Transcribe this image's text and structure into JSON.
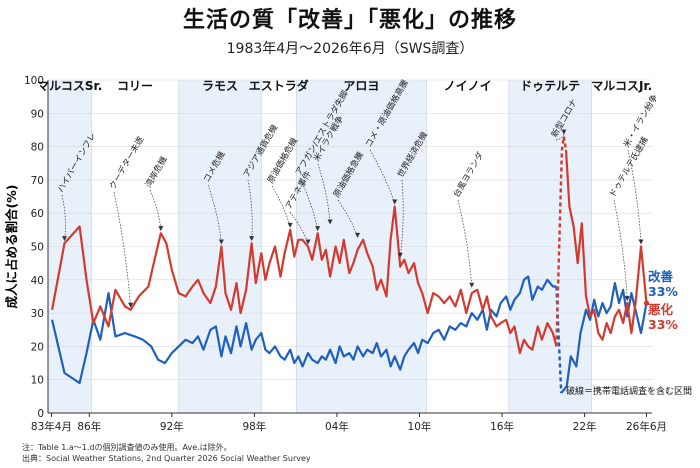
{
  "title": "生活の質「改善」「悪化」の推移",
  "subtitle": "1983年4月～2026年6月（SWS調査）",
  "footnote": {
    "line1": "注：Table 1.a～1.dの個別調査値のみ使用。Ave.は除外。",
    "line2": "出典：Social Weather Stations, 2nd Quarter 2026 Social Weather Survey"
  },
  "colors": {
    "improve": "#1f5fbf",
    "worsen": "#d23a2f",
    "band": "#e8f0fa",
    "grid": "#d9d9d9"
  },
  "chart_data": {
    "type": "line",
    "ylabel": "成人に占める割合(%)",
    "ylim": [
      0,
      100
    ],
    "xlim": [
      1983.0,
      2026.9
    ],
    "yticks": [
      0,
      10,
      20,
      30,
      40,
      50,
      60,
      70,
      80,
      90,
      100
    ],
    "xticks": [
      {
        "x": 1983.25,
        "label": "83年4月"
      },
      {
        "x": 1986,
        "label": "86年"
      },
      {
        "x": 1992,
        "label": "92年"
      },
      {
        "x": 1998,
        "label": "98年"
      },
      {
        "x": 2004,
        "label": "04年"
      },
      {
        "x": 2010,
        "label": "10年"
      },
      {
        "x": 2016,
        "label": "16年"
      },
      {
        "x": 2022,
        "label": "22年"
      },
      {
        "x": 2026.5,
        "label": "26年6月"
      }
    ],
    "eras": [
      {
        "label": "マルコスSr.",
        "start": 1983.0,
        "end": 1986.15,
        "shaded": true
      },
      {
        "label": "コリー",
        "start": 1986.15,
        "end": 1992.5,
        "shaded": false
      },
      {
        "label": "ラモス",
        "start": 1992.5,
        "end": 1998.5,
        "shaded": true
      },
      {
        "label": "エストラダ",
        "start": 1998.5,
        "end": 2001.05,
        "shaded": false
      },
      {
        "label": "アロヨ",
        "start": 2001.05,
        "end": 2010.5,
        "shaded": true
      },
      {
        "label": "ノイノイ",
        "start": 2010.5,
        "end": 2016.5,
        "shaded": false
      },
      {
        "label": "ドゥテルテ",
        "start": 2016.5,
        "end": 2022.5,
        "shaded": true
      },
      {
        "label": "マルコスJr.",
        "start": 2022.5,
        "end": 2026.9,
        "shaded": false
      }
    ],
    "series": [
      {
        "name": "改善",
        "end_label": "改善",
        "end_value_label": "33%",
        "points": [
          [
            1983.3,
            28
          ],
          [
            1984.2,
            12
          ],
          [
            1985.3,
            9
          ],
          [
            1985.8,
            18
          ],
          [
            1986.3,
            28
          ],
          [
            1986.8,
            22
          ],
          [
            1987.4,
            36
          ],
          [
            1987.9,
            23
          ],
          [
            1988.6,
            24
          ],
          [
            1989.3,
            23
          ],
          [
            1989.9,
            22
          ],
          [
            1990.5,
            20
          ],
          [
            1991.0,
            16
          ],
          [
            1991.5,
            15
          ],
          [
            1992.0,
            18
          ],
          [
            1992.5,
            20
          ],
          [
            1993.0,
            22
          ],
          [
            1993.5,
            21
          ],
          [
            1993.9,
            23
          ],
          [
            1994.3,
            19
          ],
          [
            1994.8,
            25
          ],
          [
            1995.2,
            26
          ],
          [
            1995.6,
            17
          ],
          [
            1995.9,
            23
          ],
          [
            1996.3,
            18
          ],
          [
            1996.7,
            26
          ],
          [
            1997.0,
            20
          ],
          [
            1997.4,
            27
          ],
          [
            1997.8,
            19
          ],
          [
            1998.1,
            22
          ],
          [
            1998.5,
            24
          ],
          [
            1998.8,
            19
          ],
          [
            1999.1,
            18
          ],
          [
            1999.5,
            20
          ],
          [
            1999.9,
            17
          ],
          [
            2000.2,
            16
          ],
          [
            2000.6,
            19
          ],
          [
            2000.9,
            15
          ],
          [
            2001.2,
            17
          ],
          [
            2001.5,
            14
          ],
          [
            2001.9,
            18
          ],
          [
            2002.2,
            16
          ],
          [
            2002.6,
            15
          ],
          [
            2002.9,
            17
          ],
          [
            2003.2,
            16
          ],
          [
            2003.5,
            19
          ],
          [
            2003.9,
            15
          ],
          [
            2004.2,
            20
          ],
          [
            2004.5,
            17
          ],
          [
            2004.9,
            18
          ],
          [
            2005.2,
            16
          ],
          [
            2005.5,
            20
          ],
          [
            2005.9,
            17
          ],
          [
            2006.2,
            19
          ],
          [
            2006.6,
            18
          ],
          [
            2006.9,
            21
          ],
          [
            2007.2,
            17
          ],
          [
            2007.6,
            19
          ],
          [
            2007.9,
            14
          ],
          [
            2008.2,
            17
          ],
          [
            2008.6,
            13
          ],
          [
            2008.9,
            17
          ],
          [
            2009.2,
            19
          ],
          [
            2009.6,
            21
          ],
          [
            2009.9,
            18
          ],
          [
            2010.2,
            22
          ],
          [
            2010.6,
            21
          ],
          [
            2011.0,
            24
          ],
          [
            2011.4,
            25
          ],
          [
            2011.8,
            22
          ],
          [
            2012.2,
            26
          ],
          [
            2012.6,
            25
          ],
          [
            2013.0,
            27
          ],
          [
            2013.4,
            26
          ],
          [
            2013.8,
            30
          ],
          [
            2014.2,
            28
          ],
          [
            2014.6,
            31
          ],
          [
            2014.9,
            25
          ],
          [
            2015.2,
            31
          ],
          [
            2015.6,
            29
          ],
          [
            2015.9,
            33
          ],
          [
            2016.3,
            35
          ],
          [
            2016.6,
            31
          ],
          [
            2016.9,
            34
          ],
          [
            2017.3,
            36
          ],
          [
            2017.6,
            40
          ],
          [
            2017.9,
            41
          ],
          [
            2018.2,
            34
          ],
          [
            2018.6,
            38
          ],
          [
            2018.9,
            37
          ],
          [
            2019.3,
            40
          ],
          [
            2019.7,
            38
          ],
          [
            2019.95,
            38
          ]
        ],
        "gap_points": [
          [
            2019.95,
            38
          ],
          [
            2020.3,
            6
          ]
        ],
        "points_after": [
          [
            2020.3,
            6
          ],
          [
            2020.7,
            8
          ],
          [
            2021.0,
            17
          ],
          [
            2021.4,
            14
          ],
          [
            2021.7,
            24
          ],
          [
            2022.1,
            31
          ],
          [
            2022.4,
            28
          ],
          [
            2022.7,
            34
          ],
          [
            2023.0,
            29
          ],
          [
            2023.3,
            33
          ],
          [
            2023.6,
            30
          ],
          [
            2023.9,
            32
          ],
          [
            2024.2,
            39
          ],
          [
            2024.5,
            33
          ],
          [
            2024.8,
            37
          ],
          [
            2025.1,
            29
          ],
          [
            2025.4,
            36
          ],
          [
            2025.7,
            31
          ],
          [
            2026.1,
            24
          ],
          [
            2026.5,
            33
          ]
        ]
      },
      {
        "name": "悪化",
        "end_label": "悪化",
        "end_value_label": "33%",
        "points": [
          [
            1983.3,
            31
          ],
          [
            1984.2,
            51
          ],
          [
            1985.3,
            56
          ],
          [
            1985.8,
            40
          ],
          [
            1986.3,
            27
          ],
          [
            1986.8,
            32
          ],
          [
            1987.4,
            26
          ],
          [
            1987.9,
            37
          ],
          [
            1988.6,
            32
          ],
          [
            1989.0,
            31
          ],
          [
            1989.6,
            35
          ],
          [
            1990.3,
            38
          ],
          [
            1990.8,
            47
          ],
          [
            1991.2,
            54
          ],
          [
            1991.6,
            51
          ],
          [
            1992.0,
            43
          ],
          [
            1992.5,
            36
          ],
          [
            1993.0,
            35
          ],
          [
            1993.5,
            38
          ],
          [
            1993.9,
            40
          ],
          [
            1994.3,
            36
          ],
          [
            1994.8,
            33
          ],
          [
            1995.2,
            38
          ],
          [
            1995.6,
            50
          ],
          [
            1995.9,
            36
          ],
          [
            1996.3,
            31
          ],
          [
            1996.7,
            39
          ],
          [
            1997.0,
            30
          ],
          [
            1997.4,
            37
          ],
          [
            1997.8,
            51
          ],
          [
            1998.1,
            39
          ],
          [
            1998.5,
            48
          ],
          [
            1998.8,
            40
          ],
          [
            1999.1,
            45
          ],
          [
            1999.5,
            50
          ],
          [
            1999.9,
            41
          ],
          [
            2000.2,
            48
          ],
          [
            2000.6,
            55
          ],
          [
            2000.9,
            47
          ],
          [
            2001.2,
            52
          ],
          [
            2001.5,
            52
          ],
          [
            2001.9,
            50
          ],
          [
            2002.2,
            46
          ],
          [
            2002.6,
            54
          ],
          [
            2002.9,
            46
          ],
          [
            2003.2,
            49
          ],
          [
            2003.5,
            41
          ],
          [
            2003.9,
            50
          ],
          [
            2004.2,
            45
          ],
          [
            2004.5,
            52
          ],
          [
            2004.9,
            42
          ],
          [
            2005.2,
            45
          ],
          [
            2005.5,
            49
          ],
          [
            2005.9,
            52
          ],
          [
            2006.2,
            48
          ],
          [
            2006.6,
            44
          ],
          [
            2006.9,
            37
          ],
          [
            2007.2,
            40
          ],
          [
            2007.6,
            35
          ],
          [
            2007.9,
            52
          ],
          [
            2008.2,
            62
          ],
          [
            2008.6,
            44
          ],
          [
            2008.9,
            46
          ],
          [
            2009.2,
            42
          ],
          [
            2009.6,
            45
          ],
          [
            2009.9,
            39
          ],
          [
            2010.2,
            36
          ],
          [
            2010.6,
            30
          ],
          [
            2011.0,
            36
          ],
          [
            2011.4,
            35
          ],
          [
            2011.8,
            33
          ],
          [
            2012.2,
            35
          ],
          [
            2012.6,
            32
          ],
          [
            2013.0,
            37
          ],
          [
            2013.4,
            30
          ],
          [
            2013.8,
            36
          ],
          [
            2014.2,
            37
          ],
          [
            2014.6,
            31
          ],
          [
            2014.9,
            35
          ],
          [
            2015.2,
            29
          ],
          [
            2015.6,
            26
          ],
          [
            2015.9,
            27
          ],
          [
            2016.3,
            28
          ],
          [
            2016.6,
            24
          ],
          [
            2016.9,
            26
          ],
          [
            2017.3,
            18
          ],
          [
            2017.6,
            22
          ],
          [
            2017.9,
            20
          ],
          [
            2018.2,
            19
          ],
          [
            2018.6,
            26
          ],
          [
            2018.9,
            22
          ],
          [
            2019.3,
            27
          ],
          [
            2019.7,
            24
          ],
          [
            2019.95,
            20
          ]
        ],
        "gap_points": [
          [
            2019.95,
            20
          ],
          [
            2020.35,
            79
          ],
          [
            2020.5,
            83
          ],
          [
            2020.65,
            79
          ]
        ],
        "points_after": [
          [
            2020.65,
            79
          ],
          [
            2020.9,
            62
          ],
          [
            2021.2,
            56
          ],
          [
            2021.5,
            45
          ],
          [
            2021.8,
            57
          ],
          [
            2022.1,
            35
          ],
          [
            2022.4,
            29
          ],
          [
            2022.7,
            31
          ],
          [
            2023.0,
            24
          ],
          [
            2023.3,
            22
          ],
          [
            2023.6,
            27
          ],
          [
            2023.9,
            24
          ],
          [
            2024.2,
            29
          ],
          [
            2024.5,
            31
          ],
          [
            2024.8,
            27
          ],
          [
            2025.1,
            33
          ],
          [
            2025.4,
            24
          ],
          [
            2025.7,
            33
          ],
          [
            2026.1,
            50
          ],
          [
            2026.5,
            33
          ]
        ]
      }
    ],
    "annotations": [
      {
        "label": "ハイパーインフレ",
        "x": 1984.2,
        "y": 51
      },
      {
        "label": "クーデター未遂",
        "x": 1989.0,
        "y": 31
      },
      {
        "label": "湾岸危機",
        "x": 1991.2,
        "y": 54
      },
      {
        "label": "コメ危機",
        "x": 1995.6,
        "y": 50
      },
      {
        "label": "アジア通貨危機",
        "x": 1997.8,
        "y": 51
      },
      {
        "label": "原油価格危機",
        "x": 2000.6,
        "y": 55
      },
      {
        "label": "アテネ事件",
        "x": 2001.9,
        "y": 50
      },
      {
        "label": "アフガン/エストラダ失脚",
        "x": 2002.6,
        "y": 54
      },
      {
        "label": "米イラク戦争",
        "x": 2003.5,
        "y": 56
      },
      {
        "label": "原油価格急騰",
        "x": 2005.5,
        "y": 52
      },
      {
        "label": "コメ・原油価格高騰",
        "x": 2008.2,
        "y": 62
      },
      {
        "label": "世界経済危機",
        "x": 2008.6,
        "y": 46
      },
      {
        "label": "台風ヨランダ",
        "x": 2013.8,
        "y": 37
      },
      {
        "label": "新型コロナ",
        "x": 2020.5,
        "y": 83
      },
      {
        "label": "米・イラン紛争",
        "x": 2026.1,
        "y": 50
      },
      {
        "label": "ドゥテルテ氏逮捕",
        "x": 2025.1,
        "y": 33
      }
    ],
    "note": "破線＝携帯電話調査を含む区間"
  }
}
